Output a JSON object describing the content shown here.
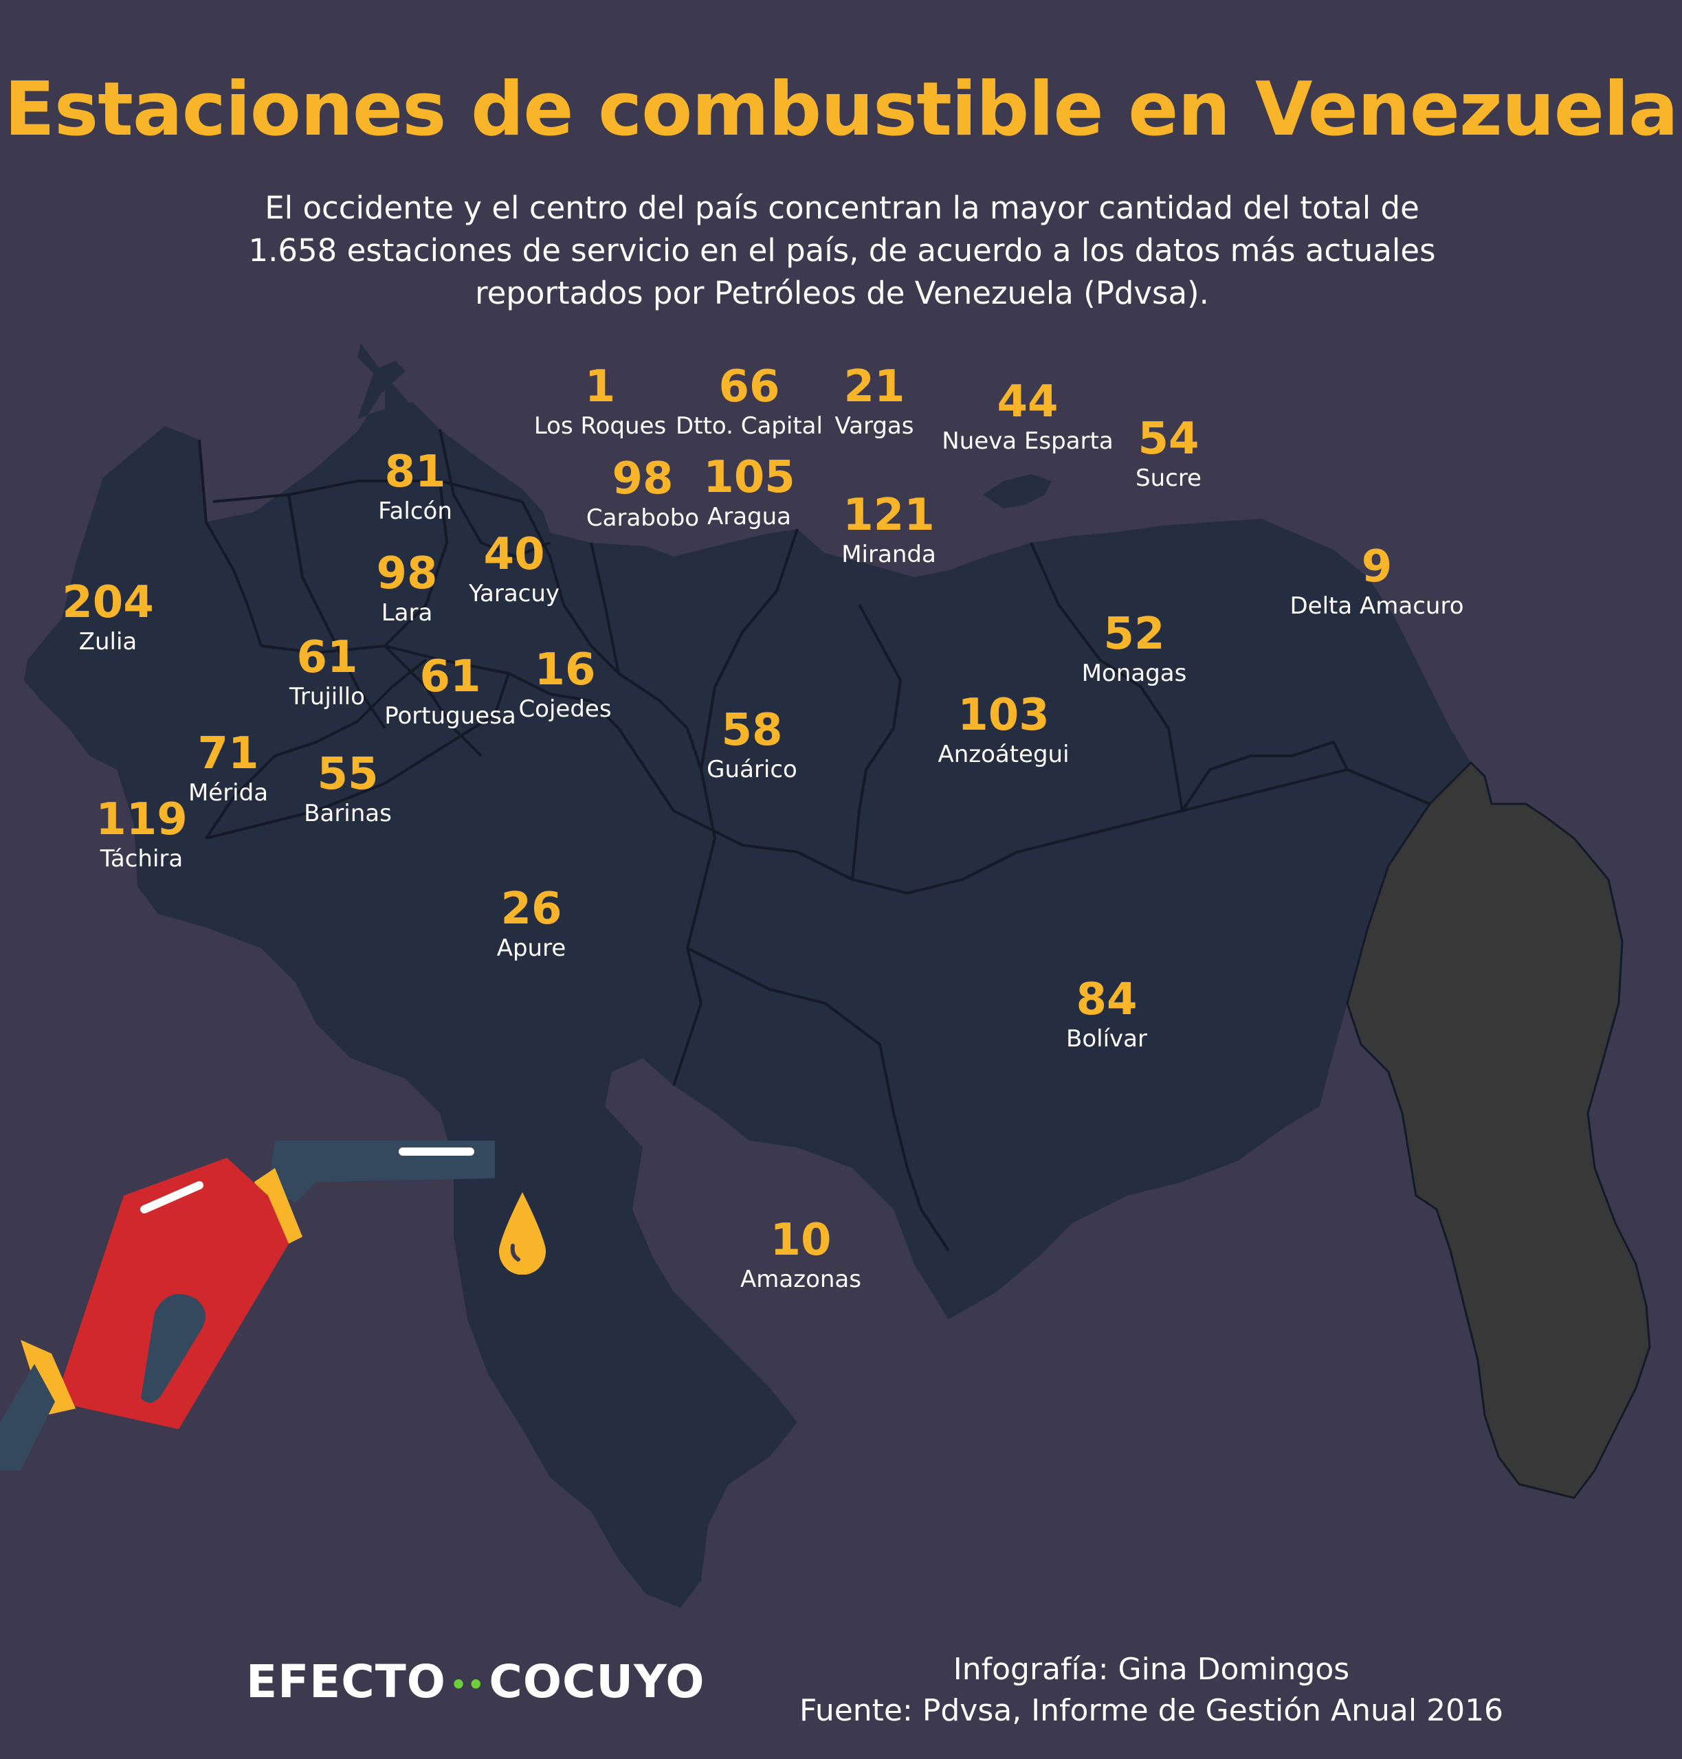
{
  "title": "Estaciones de combustible en Venezuela",
  "subtitle": "El occidente y el centro del país concentran la mayor cantidad del total de 1.658 estaciones de servicio en el país, de acuerdo a los datos más actuales reportados por Petróleos de Venezuela (Pdvsa).",
  "colors": {
    "background": "#3d3a50",
    "map_fill": "#252d40",
    "border_line": "#141a28",
    "disputed_area": "#383838",
    "accent": "#f9b529",
    "text": "#ffffff",
    "pump_red": "#d1282e",
    "logo_dots": "#6ccf3a"
  },
  "states": [
    {
      "id": "los-roques",
      "name": "Los Roques",
      "value": "1"
    },
    {
      "id": "dtto-capital",
      "name": "Dtto. Capital",
      "value": "66"
    },
    {
      "id": "vargas",
      "name": "Vargas",
      "value": "21"
    },
    {
      "id": "nueva-esparta",
      "name": "Nueva Esparta",
      "value": "44"
    },
    {
      "id": "sucre",
      "name": "Sucre",
      "value": "54"
    },
    {
      "id": "falcon",
      "name": "Falcón",
      "value": "81"
    },
    {
      "id": "carabobo",
      "name": "Carabobo",
      "value": "98"
    },
    {
      "id": "aragua",
      "name": "Aragua",
      "value": "105"
    },
    {
      "id": "miranda",
      "name": "Miranda",
      "value": "121"
    },
    {
      "id": "delta-amacuro",
      "name": "Delta Amacuro",
      "value": "9"
    },
    {
      "id": "lara",
      "name": "Lara",
      "value": "98"
    },
    {
      "id": "yaracuy",
      "name": "Yaracuy",
      "value": "40"
    },
    {
      "id": "zulia",
      "name": "Zulia",
      "value": "204"
    },
    {
      "id": "monagas",
      "name": "Monagas",
      "value": "52"
    },
    {
      "id": "trujillo",
      "name": "Trujillo",
      "value": "61"
    },
    {
      "id": "portuguesa",
      "name": "Portuguesa",
      "value": "61"
    },
    {
      "id": "cojedes",
      "name": "Cojedes",
      "value": "16"
    },
    {
      "id": "guarico",
      "name": "Guárico",
      "value": "58"
    },
    {
      "id": "anzoategui",
      "name": "Anzoátegui",
      "value": "103"
    },
    {
      "id": "merida",
      "name": "Mérida",
      "value": "71"
    },
    {
      "id": "barinas",
      "name": "Barinas",
      "value": "55"
    },
    {
      "id": "tachira",
      "name": "Táchira",
      "value": "119"
    },
    {
      "id": "apure",
      "name": "Apure",
      "value": "26"
    },
    {
      "id": "bolivar",
      "name": "Bolívar",
      "value": "84"
    },
    {
      "id": "amazonas",
      "name": "Amazonas",
      "value": "10"
    }
  ],
  "footer": {
    "logo_left": "EFECTO",
    "logo_dots": "••",
    "logo_right": "COCUYO",
    "credit_line1": "Infografía: Gina Domingos",
    "credit_line2": "Fuente: Pdvsa, Informe de Gestión Anual 2016"
  }
}
